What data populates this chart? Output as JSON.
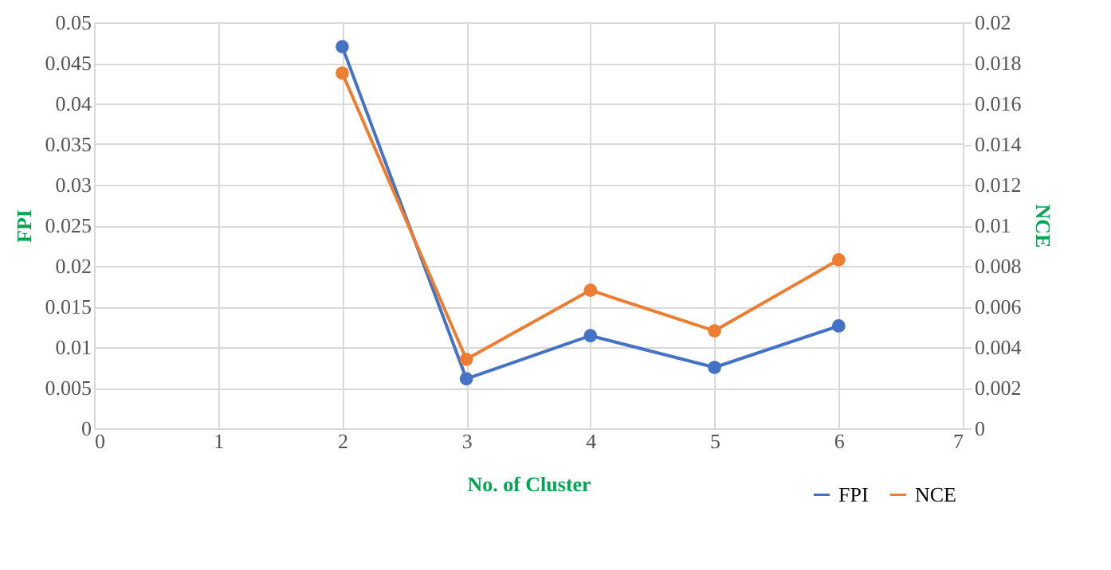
{
  "chart_data": {
    "type": "line",
    "xlabel": "No. of Cluster",
    "ylabel": "FPI",
    "y2label": "NCE",
    "x": [
      2,
      3,
      4,
      5,
      6
    ],
    "series": [
      {
        "name": "FPI",
        "color": "#4472c4",
        "values": [
          0.047,
          0.0061,
          0.0114,
          0.0075,
          0.0126
        ]
      },
      {
        "name": "NCE",
        "color": "#ed7d31",
        "axis": "y2",
        "values": [
          0.0175,
          0.0034,
          0.0068,
          0.0048,
          0.0083
        ]
      }
    ],
    "xlim": [
      0,
      7
    ],
    "xticks": [
      0,
      1,
      2,
      3,
      4,
      5,
      6,
      7
    ],
    "ylim": [
      0,
      0.05
    ],
    "yticks": [
      0,
      0.005,
      0.01,
      0.015,
      0.02,
      0.025,
      0.03,
      0.035,
      0.04,
      0.045,
      0.05
    ],
    "y2lim": [
      0,
      0.02
    ],
    "y2ticks": [
      0,
      0.002,
      0.004,
      0.006,
      0.008,
      0.01,
      0.012,
      0.014,
      0.016,
      0.018,
      0.02
    ],
    "grid": true,
    "legend": "bottom right",
    "marker": "circle",
    "line_style": "solid"
  }
}
